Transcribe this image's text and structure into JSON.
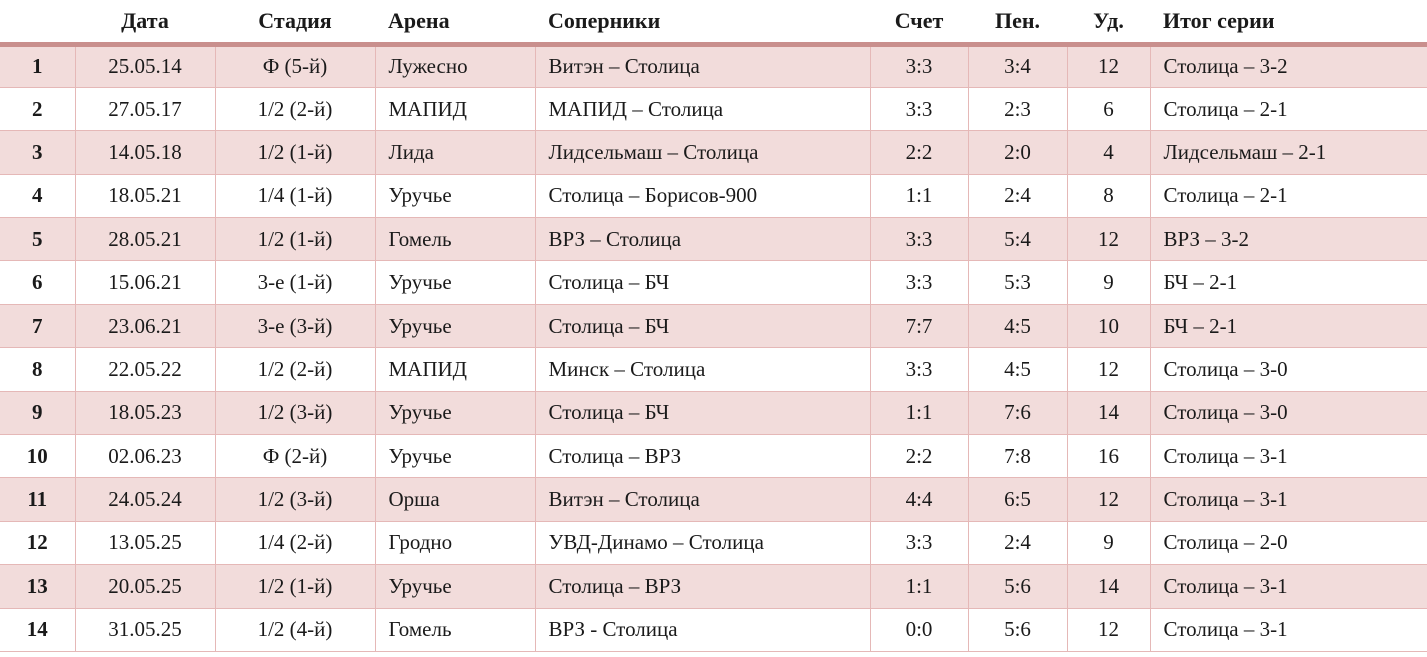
{
  "colors": {
    "row_stripe": "#f2dcdb",
    "grid_line": "#e5b8b7",
    "header_rule": "#c98f8d",
    "text": "#1a1a1a"
  },
  "table": {
    "columns": [
      {
        "key": "num",
        "label": "",
        "align": "center"
      },
      {
        "key": "date",
        "label": "Дата",
        "align": "center"
      },
      {
        "key": "stage",
        "label": "Стадия",
        "align": "center"
      },
      {
        "key": "arena",
        "label": "Арена",
        "align": "left"
      },
      {
        "key": "opponents",
        "label": "Соперники",
        "align": "left"
      },
      {
        "key": "score",
        "label": "Счет",
        "align": "center"
      },
      {
        "key": "penalties",
        "label": "Пен.",
        "align": "center"
      },
      {
        "key": "shots",
        "label": "Уд.",
        "align": "center"
      },
      {
        "key": "series",
        "label": "Итог серии",
        "align": "left"
      }
    ],
    "rows": [
      [
        "1",
        "25.05.14",
        "Ф (5-й)",
        "Лужесно",
        "Витэн – Столица",
        "3:3",
        "3:4",
        "12",
        "Столица – 3-2"
      ],
      [
        "2",
        "27.05.17",
        "1/2 (2-й)",
        "МАПИД",
        "МАПИД – Столица",
        "3:3",
        "2:3",
        "6",
        "Столица – 2-1"
      ],
      [
        "3",
        "14.05.18",
        "1/2 (1-й)",
        "Лида",
        "Лидсельмаш – Столица",
        "2:2",
        "2:0",
        "4",
        "Лидсельмаш – 2-1"
      ],
      [
        "4",
        "18.05.21",
        "1/4 (1-й)",
        "Уручье",
        "Столица – Борисов-900",
        "1:1",
        "2:4",
        "8",
        "Столица – 2-1"
      ],
      [
        "5",
        "28.05.21",
        "1/2 (1-й)",
        "Гомель",
        "ВРЗ – Столица",
        "3:3",
        "5:4",
        "12",
        "ВРЗ – 3-2"
      ],
      [
        "6",
        "15.06.21",
        "3-е (1-й)",
        "Уручье",
        "Столица – БЧ",
        "3:3",
        "5:3",
        "9",
        "БЧ – 2-1"
      ],
      [
        "7",
        "23.06.21",
        "3-е (3-й)",
        "Уручье",
        "Столица – БЧ",
        "7:7",
        "4:5",
        "10",
        "БЧ – 2-1"
      ],
      [
        "8",
        "22.05.22",
        "1/2 (2-й)",
        "МАПИД",
        "Минск – Столица",
        "3:3",
        "4:5",
        "12",
        "Столица – 3-0"
      ],
      [
        "9",
        "18.05.23",
        "1/2 (3-й)",
        "Уручье",
        "Столица – БЧ",
        "1:1",
        "7:6",
        "14",
        "Столица – 3-0"
      ],
      [
        "10",
        "02.06.23",
        "Ф (2-й)",
        "Уручье",
        "Столица – ВРЗ",
        "2:2",
        "7:8",
        "16",
        "Столица – 3-1"
      ],
      [
        "11",
        "24.05.24",
        "1/2 (3-й)",
        "Орша",
        "Витэн – Столица",
        "4:4",
        "6:5",
        "12",
        "Столица – 3-1"
      ],
      [
        "12",
        "13.05.25",
        "1/4 (2-й)",
        "Гродно",
        "УВД-Динамо – Столица",
        "3:3",
        "2:4",
        "9",
        "Столица – 2-0"
      ],
      [
        "13",
        "20.05.25",
        "1/2 (1-й)",
        "Уручье",
        "Столица – ВРЗ",
        "1:1",
        "5:6",
        "14",
        "Столица – 3-1"
      ],
      [
        "14",
        "31.05.25",
        "1/2 (4-й)",
        "Гомель",
        "ВРЗ - Столица",
        "0:0",
        "5:6",
        "12",
        "Столица – 3-1"
      ]
    ]
  }
}
